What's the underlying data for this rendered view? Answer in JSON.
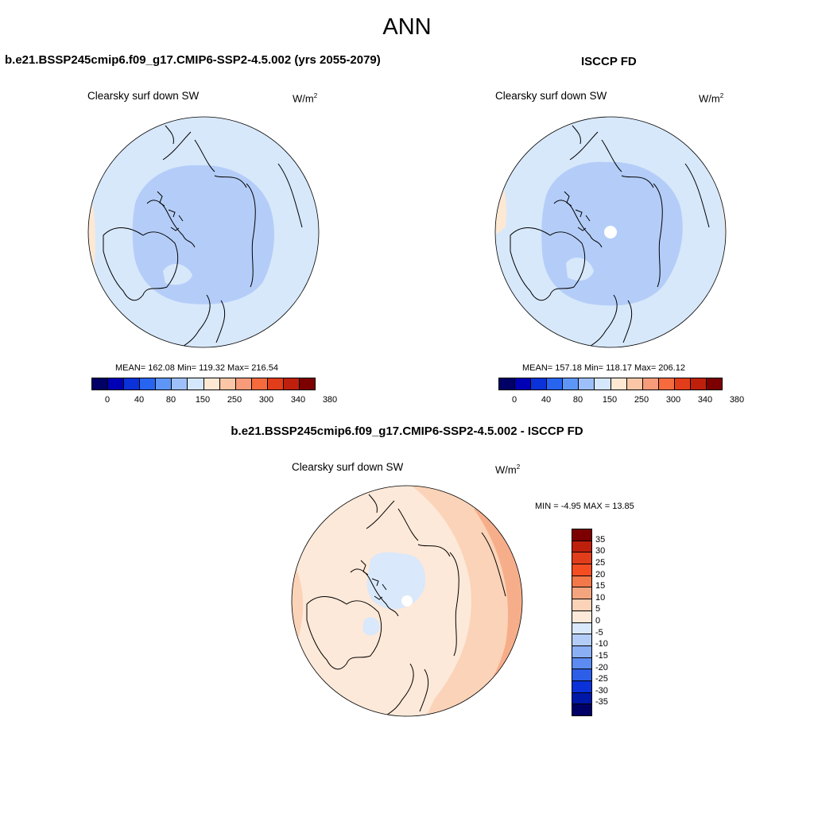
{
  "main_title": "ANN",
  "panels": {
    "model": {
      "title": "b.e21.BSSP245cmip6.f09_g17.CMIP6-SSP2-4.5.002 (yrs 2055-2079)",
      "variable": "Clearsky surf down SW",
      "units_base": "W/m",
      "units_exp": "2",
      "stats": "MEAN= 162.08  Min= 119.32  Max= 216.54"
    },
    "obs": {
      "title": "ISCCP FD",
      "variable": "Clearsky surf down SW",
      "units_base": "W/m",
      "units_exp": "2",
      "stats": "MEAN= 157.18  Min= 118.17  Max= 206.12"
    },
    "diff": {
      "title": "b.e21.BSSP245cmip6.f09_g17.CMIP6-SSP2-4.5.002 - ISCCP FD",
      "variable": "Clearsky surf down SW",
      "units_base": "W/m",
      "units_exp": "2",
      "stats": "MIN =  -4.95 MAX =  13.85"
    }
  },
  "abs_colorbar": {
    "colors": [
      "#000066",
      "#0000b4",
      "#0a32d8",
      "#2764f0",
      "#5e96f7",
      "#9ec0fa",
      "#d5e7fc",
      "#fde8d4",
      "#fbc6a6",
      "#f79b7b",
      "#f56b3e",
      "#e23d1a",
      "#bf200c",
      "#7d0000"
    ],
    "tick_labels": [
      "0",
      "40",
      "80",
      "150",
      "250",
      "300",
      "340",
      "380"
    ]
  },
  "diff_colorbar": {
    "colors": [
      "#7d0000",
      "#bf200c",
      "#e23d1a",
      "#f54d22",
      "#f2784a",
      "#f5a57e",
      "#fbd3b8",
      "#fde9d9",
      "#d9e8fb",
      "#b4cdf8",
      "#8aaff5",
      "#5c8cf2",
      "#2d5ee8",
      "#0a32d8",
      "#0018a8",
      "#000066"
    ],
    "tick_labels": [
      "35",
      "30",
      "25",
      "20",
      "15",
      "10",
      "5",
      "0",
      "-5",
      "-10",
      "-15",
      "-20",
      "-25",
      "-30",
      "-35"
    ]
  }
}
